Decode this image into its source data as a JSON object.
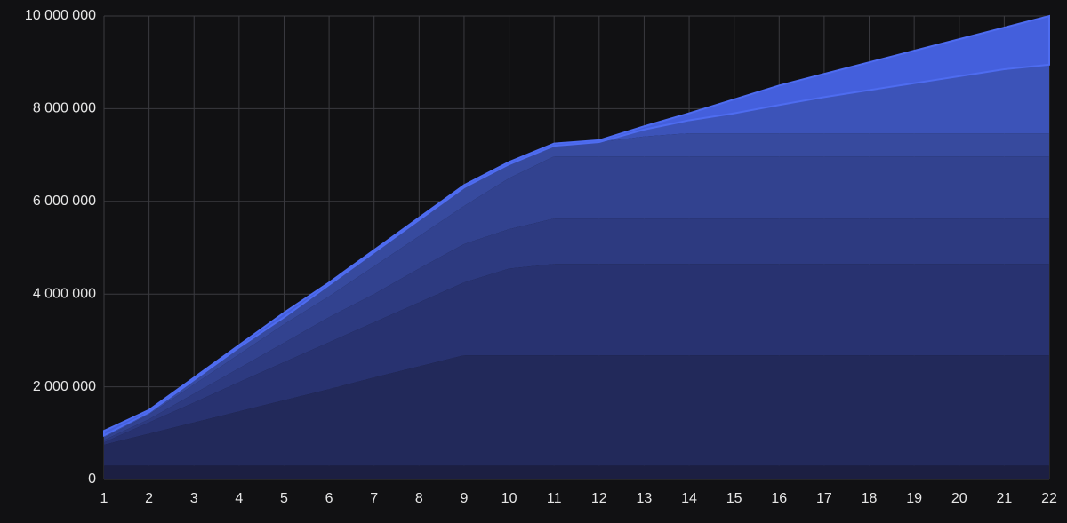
{
  "chart_data": {
    "type": "stacked-area",
    "x": [
      1,
      2,
      3,
      4,
      5,
      6,
      7,
      8,
      9,
      10,
      11,
      12,
      13,
      14,
      15,
      16,
      17,
      18,
      19,
      20,
      21,
      22
    ],
    "xlim": [
      1,
      22
    ],
    "xticks": [
      1,
      2,
      3,
      4,
      5,
      6,
      7,
      8,
      9,
      10,
      11,
      12,
      13,
      14,
      15,
      16,
      17,
      18,
      19,
      20,
      21,
      22
    ],
    "ylim": [
      0,
      10000000
    ],
    "yticks": [
      0,
      {
        "value": 2000000,
        "label": "2 000 000"
      },
      {
        "value": 4000000,
        "label": "4 000 000"
      },
      {
        "value": 6000000,
        "label": "6 000 000"
      },
      {
        "value": 8000000,
        "label": "8 000 000"
      },
      {
        "value": 10000000,
        "label": "10 000 000"
      }
    ],
    "grid": true,
    "series": [
      {
        "color": "#1c1f42",
        "values": [
          300000,
          300000,
          300000,
          300000,
          300000,
          300000,
          300000,
          300000,
          300000,
          300000,
          300000,
          300000,
          300000,
          300000,
          300000,
          300000,
          300000,
          300000,
          300000,
          300000,
          300000,
          300000
        ]
      },
      {
        "color": "#22295a",
        "values": [
          450000,
          690000,
          930000,
          1170000,
          1410000,
          1650000,
          1900000,
          2140000,
          2380000,
          2380000,
          2380000,
          2380000,
          2380000,
          2380000,
          2380000,
          2380000,
          2380000,
          2380000,
          2380000,
          2380000,
          2380000,
          2380000
        ]
      },
      {
        "color": "#283270",
        "values": [
          50000,
          240000,
          430000,
          630000,
          820000,
          1010000,
          1190000,
          1380000,
          1570000,
          1870000,
          1970000,
          1970000,
          1970000,
          1970000,
          1970000,
          1970000,
          1970000,
          1970000,
          1970000,
          1970000,
          1970000,
          1970000
        ]
      },
      {
        "color": "#2d3a80",
        "values": [
          50000,
          70000,
          190000,
          300000,
          420000,
          540000,
          610000,
          730000,
          830000,
          850000,
          980000,
          980000,
          980000,
          980000,
          980000,
          980000,
          980000,
          980000,
          980000,
          980000,
          980000,
          980000
        ]
      },
      {
        "color": "#32428f",
        "values": [
          50000,
          100000,
          200000,
          300000,
          400000,
          450000,
          600000,
          700000,
          820000,
          1100000,
          1340000,
          1340000,
          1340000,
          1340000,
          1340000,
          1340000,
          1340000,
          1340000,
          1340000,
          1340000,
          1340000,
          1340000
        ]
      },
      {
        "color": "#374a9e",
        "values": [
          50000,
          50000,
          100000,
          150000,
          150000,
          250000,
          300000,
          350000,
          400000,
          300000,
          230000,
          310000,
          430000,
          500000,
          500000,
          500000,
          500000,
          500000,
          500000,
          500000,
          500000,
          500000
        ]
      },
      {
        "color": "#3c53b8",
        "values": [
          0,
          0,
          0,
          0,
          0,
          0,
          0,
          0,
          0,
          0,
          0,
          0,
          150000,
          280000,
          430000,
          610000,
          780000,
          930000,
          1080000,
          1230000,
          1380000,
          1480000
        ]
      },
      {
        "color": "#445fdc",
        "values": [
          100000,
          50000,
          50000,
          50000,
          100000,
          50000,
          50000,
          50000,
          50000,
          50000,
          50000,
          40000,
          70000,
          150000,
          300000,
          420000,
          500000,
          600000,
          700000,
          800000,
          900000,
          1050000
        ]
      }
    ]
  }
}
